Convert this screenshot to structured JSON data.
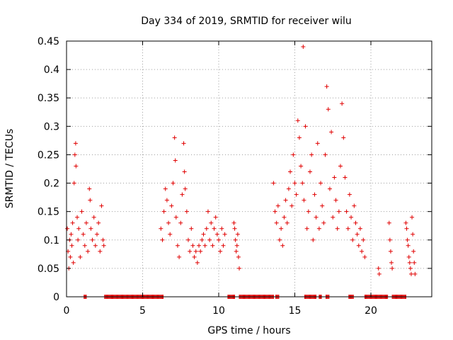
{
  "chart_data": {
    "type": "scatter",
    "title": "Day 334 of 2019, SRMTID for receiver wilu",
    "xlabel": "GPS time / hours",
    "ylabel": "SRMTID / TECUs",
    "xlim": [
      0,
      24
    ],
    "ylim": [
      0,
      0.45
    ],
    "xticks": [
      0,
      5,
      10,
      15,
      20
    ],
    "xtick_labels": [
      "0",
      "5",
      "10",
      "15",
      "20"
    ],
    "yticks": [
      0,
      0.05,
      0.1,
      0.15,
      0.2,
      0.25,
      0.3,
      0.35,
      0.4,
      0.45
    ],
    "ytick_labels": [
      "0",
      "0.05",
      "0.1",
      "0.15",
      "0.2",
      "0.25",
      "0.3",
      "0.35",
      "0.4",
      "0.45"
    ],
    "grid": true,
    "marker": "+",
    "marker_color": "#e00000",
    "series": [
      {
        "name": "SRMTID",
        "points": [
          [
            0.05,
            0.12
          ],
          [
            0.1,
            0.08
          ],
          [
            0.15,
            0.05
          ],
          [
            0.2,
            0.1
          ],
          [
            0.25,
            0.07
          ],
          [
            0.3,
            0.11
          ],
          [
            0.35,
            0.09
          ],
          [
            0.4,
            0.13
          ],
          [
            0.45,
            0.06
          ],
          [
            0.5,
            0.2
          ],
          [
            0.55,
            0.25
          ],
          [
            0.6,
            0.27
          ],
          [
            0.62,
            0.23
          ],
          [
            0.7,
            0.14
          ],
          [
            0.75,
            0.1
          ],
          [
            0.8,
            0.12
          ],
          [
            0.9,
            0.07
          ],
          [
            1.0,
            0.15
          ],
          [
            1.1,
            0.11
          ],
          [
            1.2,
            0.09
          ],
          [
            1.3,
            0.13
          ],
          [
            1.4,
            0.08
          ],
          [
            1.5,
            0.19
          ],
          [
            1.55,
            0.17
          ],
          [
            1.6,
            0.12
          ],
          [
            1.7,
            0.1
          ],
          [
            1.8,
            0.14
          ],
          [
            1.9,
            0.09
          ],
          [
            2.0,
            0.11
          ],
          [
            2.1,
            0.13
          ],
          [
            2.2,
            0.08
          ],
          [
            2.3,
            0.16
          ],
          [
            2.4,
            0.1
          ],
          [
            2.45,
            0.09
          ],
          [
            6.2,
            0.12
          ],
          [
            6.3,
            0.1
          ],
          [
            6.4,
            0.15
          ],
          [
            6.5,
            0.19
          ],
          [
            6.6,
            0.17
          ],
          [
            6.7,
            0.13
          ],
          [
            6.8,
            0.11
          ],
          [
            6.9,
            0.16
          ],
          [
            7.0,
            0.2
          ],
          [
            7.1,
            0.28
          ],
          [
            7.15,
            0.24
          ],
          [
            7.2,
            0.14
          ],
          [
            7.3,
            0.09
          ],
          [
            7.4,
            0.07
          ],
          [
            7.5,
            0.13
          ],
          [
            7.6,
            0.18
          ],
          [
            7.7,
            0.27
          ],
          [
            7.75,
            0.22
          ],
          [
            7.8,
            0.19
          ],
          [
            7.9,
            0.15
          ],
          [
            8.0,
            0.1
          ],
          [
            8.1,
            0.08
          ],
          [
            8.2,
            0.12
          ],
          [
            8.3,
            0.09
          ],
          [
            8.4,
            0.07
          ],
          [
            8.5,
            0.08
          ],
          [
            8.6,
            0.06
          ],
          [
            8.7,
            0.09
          ],
          [
            8.8,
            0.08
          ],
          [
            8.9,
            0.1
          ],
          [
            9.0,
            0.11
          ],
          [
            9.1,
            0.09
          ],
          [
            9.2,
            0.12
          ],
          [
            9.3,
            0.15
          ],
          [
            9.4,
            0.1
          ],
          [
            9.5,
            0.13
          ],
          [
            9.6,
            0.09
          ],
          [
            9.7,
            0.12
          ],
          [
            9.8,
            0.14
          ],
          [
            9.9,
            0.11
          ],
          [
            10.0,
            0.1
          ],
          [
            10.1,
            0.08
          ],
          [
            10.2,
            0.12
          ],
          [
            10.3,
            0.09
          ],
          [
            10.4,
            0.11
          ],
          [
            11.0,
            0.13
          ],
          [
            11.05,
            0.12
          ],
          [
            11.1,
            0.1
          ],
          [
            11.15,
            0.08
          ],
          [
            11.2,
            0.09
          ],
          [
            11.25,
            0.11
          ],
          [
            11.3,
            0.07
          ],
          [
            11.35,
            0.05
          ],
          [
            13.6,
            0.2
          ],
          [
            13.7,
            0.15
          ],
          [
            13.8,
            0.13
          ],
          [
            13.9,
            0.16
          ],
          [
            14.0,
            0.1
          ],
          [
            14.1,
            0.12
          ],
          [
            14.2,
            0.09
          ],
          [
            14.3,
            0.14
          ],
          [
            14.4,
            0.17
          ],
          [
            14.5,
            0.13
          ],
          [
            14.6,
            0.19
          ],
          [
            14.7,
            0.22
          ],
          [
            14.8,
            0.16
          ],
          [
            14.9,
            0.25
          ],
          [
            15.0,
            0.2
          ],
          [
            15.1,
            0.18
          ],
          [
            15.2,
            0.31
          ],
          [
            15.3,
            0.28
          ],
          [
            15.4,
            0.23
          ],
          [
            15.5,
            0.2
          ],
          [
            15.55,
            0.44
          ],
          [
            15.6,
            0.17
          ],
          [
            15.7,
            0.3
          ],
          [
            15.8,
            0.12
          ],
          [
            15.9,
            0.15
          ],
          [
            16.0,
            0.22
          ],
          [
            16.1,
            0.25
          ],
          [
            16.2,
            0.1
          ],
          [
            16.3,
            0.18
          ],
          [
            16.4,
            0.14
          ],
          [
            16.5,
            0.27
          ],
          [
            16.6,
            0.12
          ],
          [
            16.7,
            0.2
          ],
          [
            16.8,
            0.16
          ],
          [
            16.9,
            0.13
          ],
          [
            17.0,
            0.25
          ],
          [
            17.1,
            0.37
          ],
          [
            17.2,
            0.33
          ],
          [
            17.3,
            0.19
          ],
          [
            17.4,
            0.29
          ],
          [
            17.5,
            0.14
          ],
          [
            17.6,
            0.21
          ],
          [
            17.7,
            0.17
          ],
          [
            17.8,
            0.12
          ],
          [
            17.9,
            0.15
          ],
          [
            18.0,
            0.23
          ],
          [
            18.1,
            0.34
          ],
          [
            18.2,
            0.28
          ],
          [
            18.3,
            0.21
          ],
          [
            18.4,
            0.15
          ],
          [
            18.5,
            0.12
          ],
          [
            18.6,
            0.18
          ],
          [
            18.7,
            0.14
          ],
          [
            18.8,
            0.1
          ],
          [
            18.9,
            0.16
          ],
          [
            19.0,
            0.13
          ],
          [
            19.1,
            0.11
          ],
          [
            19.2,
            0.09
          ],
          [
            19.3,
            0.12
          ],
          [
            19.4,
            0.08
          ],
          [
            19.5,
            0.1
          ],
          [
            19.6,
            0.07
          ],
          [
            20.5,
            0.05
          ],
          [
            20.55,
            0.04
          ],
          [
            21.2,
            0.13
          ],
          [
            21.25,
            0.1
          ],
          [
            21.3,
            0.08
          ],
          [
            21.35,
            0.06
          ],
          [
            21.4,
            0.05
          ],
          [
            22.3,
            0.13
          ],
          [
            22.35,
            0.12
          ],
          [
            22.4,
            0.1
          ],
          [
            22.45,
            0.09
          ],
          [
            22.5,
            0.07
          ],
          [
            22.55,
            0.06
          ],
          [
            22.6,
            0.05
          ],
          [
            22.65,
            0.04
          ],
          [
            22.7,
            0.14
          ],
          [
            22.75,
            0.11
          ],
          [
            22.8,
            0.08
          ],
          [
            22.85,
            0.06
          ],
          [
            22.9,
            0.04
          ]
        ],
        "zero_segments": [
          [
            1.15,
            1.3
          ],
          [
            2.5,
            6.35
          ],
          [
            10.6,
            11.05
          ],
          [
            11.35,
            13.6
          ],
          [
            13.75,
            13.95
          ],
          [
            15.65,
            16.4
          ],
          [
            16.6,
            16.75
          ],
          [
            17.05,
            17.25
          ],
          [
            18.55,
            18.85
          ],
          [
            19.6,
            21.1
          ],
          [
            21.4,
            22.3
          ]
        ]
      }
    ]
  }
}
